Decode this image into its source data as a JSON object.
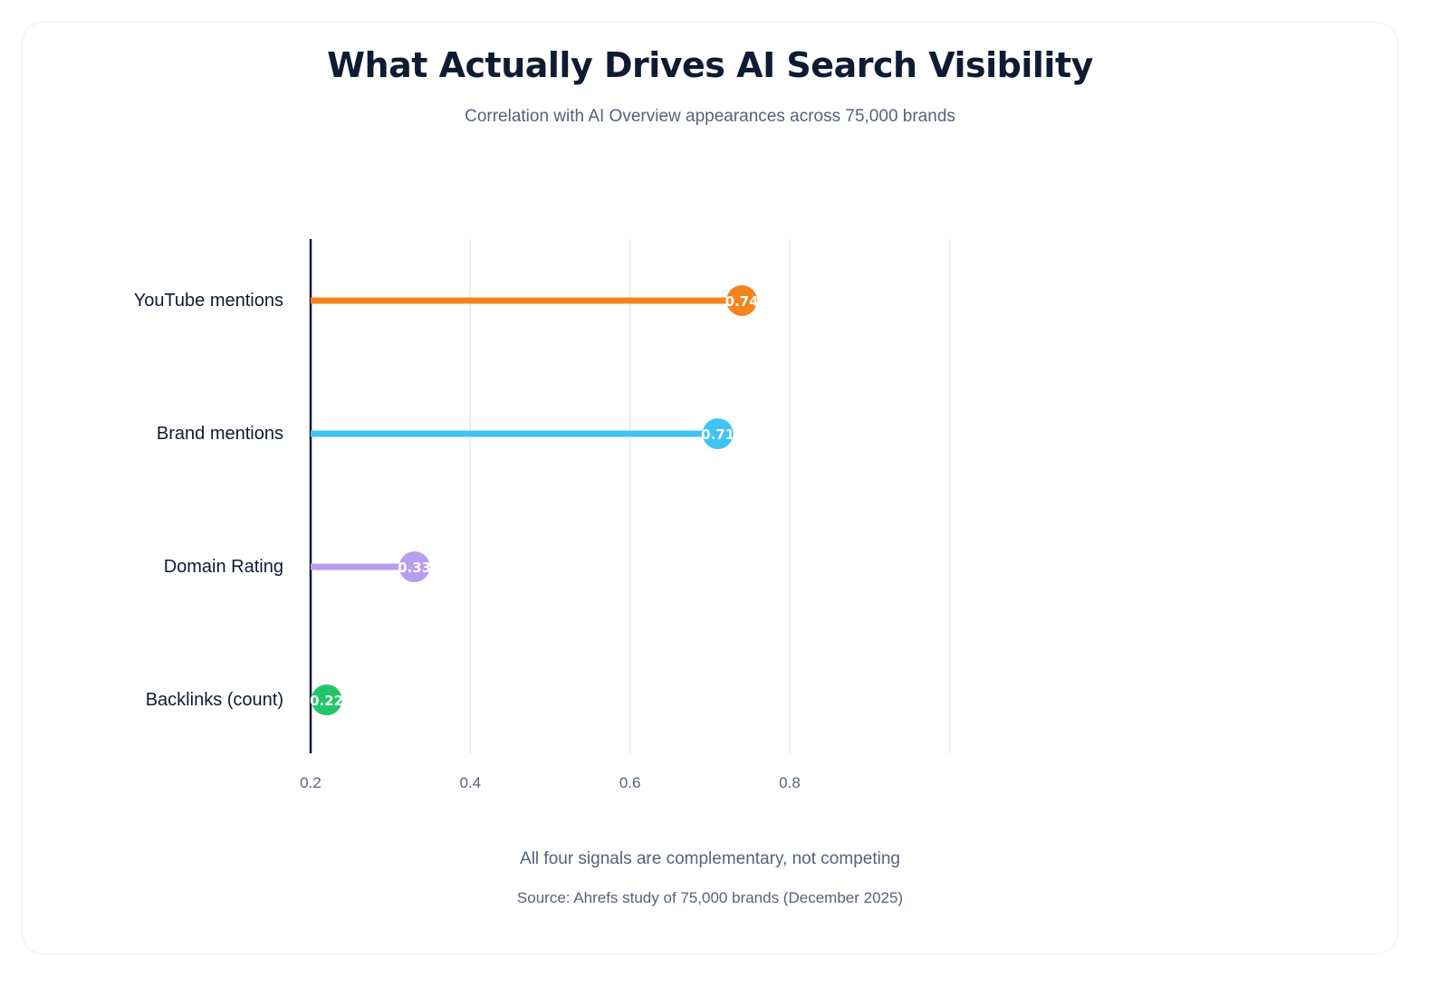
{
  "chart_data": {
    "type": "lollipop",
    "title": "What Actually Drives AI Search Visibility",
    "subtitle": "Correlation with AI Overview appearances across 75,000 brands",
    "categories": [
      "YouTube mentions",
      "Brand mentions",
      "Domain Rating",
      "Backlinks (count)"
    ],
    "values": [
      0.74,
      0.71,
      0.33,
      0.22
    ],
    "value_labels": [
      "0.74",
      "0.71",
      "0.33",
      "0.22"
    ],
    "colors": [
      "#f5841f",
      "#40c4f5",
      "#b79cf0",
      "#1fc76a"
    ],
    "xlim": [
      0.2,
      1.0
    ],
    "x_ticks": [
      0.2,
      0.4,
      0.6,
      0.8
    ],
    "x_tick_labels": [
      "0.2",
      "0.4",
      "0.6",
      "0.8"
    ],
    "grid": "vertical",
    "legend": "none"
  },
  "footer": {
    "note": "All four signals are complementary, not competing",
    "source": "Source: Ahrefs study of 75,000 brands (December 2025)"
  }
}
